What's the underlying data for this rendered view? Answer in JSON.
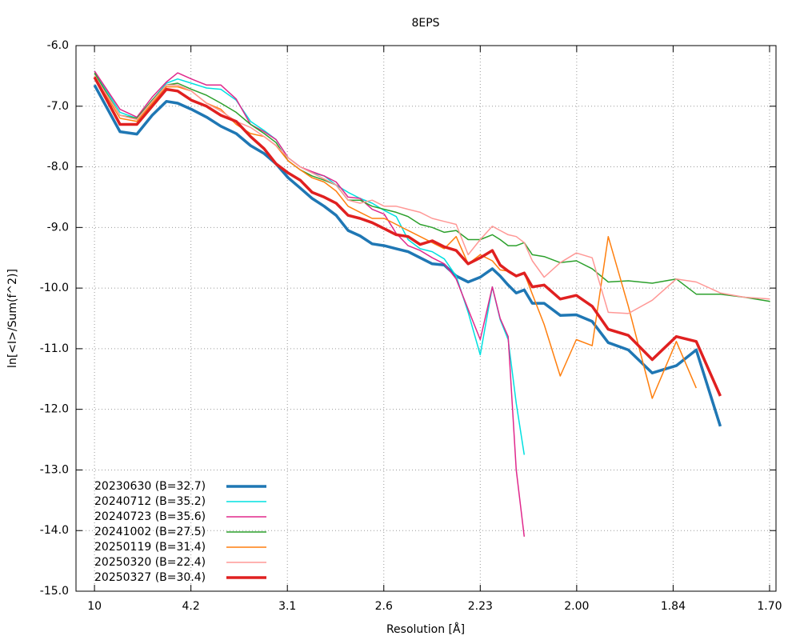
{
  "chart_data": {
    "type": "line",
    "title": "8EPS",
    "xlabel": "Resolution [Å]",
    "ylabel": "ln[<I>/Sum(f^2)]",
    "grid": true,
    "legend": "bottom-left",
    "xlim": [
      0.0008,
      0.3492
    ],
    "ylim": [
      -15,
      -6
    ],
    "xticks": [
      {
        "value": 0.01,
        "label": "10"
      },
      {
        "value": 0.058,
        "label": "4.2"
      },
      {
        "value": 0.106,
        "label": "3.1"
      },
      {
        "value": 0.154,
        "label": "2.6"
      },
      {
        "value": 0.202,
        "label": "2.23"
      },
      {
        "value": 0.25,
        "label": "2.00"
      },
      {
        "value": 0.298,
        "label": "1.84"
      },
      {
        "value": 0.346,
        "label": "1.70"
      }
    ],
    "yticks": [
      {
        "value": -6,
        "label": "-6.0"
      },
      {
        "value": -7,
        "label": "-7.0"
      },
      {
        "value": -8,
        "label": "-8.0"
      },
      {
        "value": -9,
        "label": "-9.0"
      },
      {
        "value": -10,
        "label": "-10.0"
      },
      {
        "value": -11,
        "label": "-11.0"
      },
      {
        "value": -12,
        "label": "-12.0"
      },
      {
        "value": -13,
        "label": "-13.0"
      },
      {
        "value": -14,
        "label": "-14.0"
      },
      {
        "value": -15,
        "label": "-15.0"
      }
    ],
    "x": [
      0.01,
      0.0227,
      0.0311,
      0.0387,
      0.0458,
      0.0514,
      0.0582,
      0.0658,
      0.0729,
      0.0805,
      0.0877,
      0.0944,
      0.1004,
      0.1064,
      0.1124,
      0.1183,
      0.1243,
      0.1303,
      0.1362,
      0.1422,
      0.1482,
      0.1542,
      0.1602,
      0.1661,
      0.1721,
      0.1781,
      0.1841,
      0.19,
      0.196,
      0.202,
      0.208,
      0.2119,
      0.2159,
      0.2199,
      0.2239,
      0.2279,
      0.2338,
      0.2418,
      0.2498,
      0.2577,
      0.2657,
      0.2757,
      0.2876,
      0.2996,
      0.3095,
      0.3215,
      0.3334,
      0.3462
    ],
    "series": [
      {
        "name": "20230630 (B=32.7)",
        "color": "#1f77b4",
        "linewidth": 3.5,
        "values": [
          -6.65,
          -7.42,
          -7.46,
          -7.15,
          -6.92,
          -6.95,
          -7.05,
          -7.18,
          -7.33,
          -7.45,
          -7.65,
          -7.78,
          -7.95,
          -8.18,
          -8.35,
          -8.52,
          -8.65,
          -8.8,
          -9.05,
          -9.14,
          -9.27,
          -9.3,
          -9.35,
          -9.4,
          -9.5,
          -9.6,
          -9.62,
          -9.8,
          -9.9,
          -9.82,
          -9.68,
          -9.8,
          -9.95,
          -10.08,
          -10.03,
          -10.25,
          -10.25,
          -10.45,
          -10.44,
          -10.55,
          -10.9,
          -11.02,
          -11.4,
          -11.28,
          -11.02,
          -12.28,
          null,
          null
        ]
      },
      {
        "name": "20240712 (B=35.2)",
        "color": "#00e0e0",
        "linewidth": 1.5,
        "values": [
          -6.42,
          -7.1,
          -7.2,
          -6.9,
          -6.62,
          -6.55,
          -6.62,
          -6.7,
          -6.72,
          -6.9,
          -7.25,
          -7.4,
          -7.55,
          -7.85,
          -8.0,
          -8.1,
          -8.15,
          -8.3,
          -8.42,
          -8.52,
          -8.6,
          -8.72,
          -8.82,
          -9.2,
          -9.35,
          -9.4,
          -9.52,
          -9.8,
          -10.4,
          -11.1,
          -9.98,
          -10.52,
          -10.85,
          -11.9,
          -12.75,
          null,
          null,
          null,
          null,
          null,
          null,
          null,
          null,
          null,
          null,
          null,
          null,
          null
        ]
      },
      {
        "name": "20240723 (B=35.6)",
        "color": "#e0288c",
        "linewidth": 1.5,
        "values": [
          -6.42,
          -7.05,
          -7.18,
          -6.85,
          -6.6,
          -6.45,
          -6.55,
          -6.65,
          -6.65,
          -6.88,
          -7.3,
          -7.42,
          -7.55,
          -7.85,
          -8.0,
          -8.08,
          -8.15,
          -8.25,
          -8.5,
          -8.52,
          -8.7,
          -8.78,
          -9.1,
          -9.3,
          -9.38,
          -9.5,
          -9.6,
          -9.85,
          -10.35,
          -10.85,
          -9.98,
          -10.5,
          -10.8,
          -13.0,
          -14.1,
          null,
          null,
          null,
          null,
          null,
          null,
          null,
          null,
          null,
          null,
          null,
          null,
          null
        ]
      },
      {
        "name": "20241002 (B=27.5)",
        "color": "#2ca02c",
        "linewidth": 1.5,
        "values": [
          -6.45,
          -7.15,
          -7.2,
          -6.9,
          -6.65,
          -6.62,
          -6.72,
          -6.82,
          -6.95,
          -7.1,
          -7.3,
          -7.45,
          -7.6,
          -7.9,
          -8.05,
          -8.15,
          -8.22,
          -8.3,
          -8.55,
          -8.55,
          -8.65,
          -8.7,
          -8.75,
          -8.82,
          -8.95,
          -9.0,
          -9.08,
          -9.05,
          -9.2,
          -9.2,
          -9.12,
          -9.2,
          -9.3,
          -9.3,
          -9.25,
          -9.45,
          -9.48,
          -9.58,
          -9.55,
          -9.68,
          -9.9,
          -9.88,
          -9.92,
          -9.85,
          -10.1,
          -10.1,
          -10.15,
          -10.22
        ]
      },
      {
        "name": "20250119 (B=31.4)",
        "color": "#ff7f0e",
        "linewidth": 1.5,
        "values": [
          -6.5,
          -7.2,
          -7.25,
          -6.95,
          -6.68,
          -6.68,
          -6.75,
          -6.95,
          -7.05,
          -7.3,
          -7.45,
          -7.5,
          -7.65,
          -7.9,
          -8.05,
          -8.18,
          -8.25,
          -8.4,
          -8.65,
          -8.75,
          -8.85,
          -8.85,
          -8.95,
          -9.05,
          -9.15,
          -9.25,
          -9.35,
          -9.15,
          -9.6,
          -9.45,
          -9.55,
          -9.7,
          -9.72,
          -9.8,
          -9.75,
          -10.1,
          -10.6,
          -11.45,
          -10.85,
          -10.95,
          -9.15,
          -10.3,
          -11.82,
          -10.88,
          -11.65,
          null,
          null,
          null
        ]
      },
      {
        "name": "20250320 (B=22.4)",
        "color": "#ff9896",
        "linewidth": 1.5,
        "values": [
          -6.5,
          -7.15,
          -7.22,
          -6.92,
          -6.65,
          -6.65,
          -6.75,
          -6.95,
          -7.08,
          -7.25,
          -7.35,
          -7.5,
          -7.65,
          -7.85,
          -8.0,
          -8.1,
          -8.2,
          -8.3,
          -8.55,
          -8.6,
          -8.55,
          -8.65,
          -8.65,
          -8.7,
          -8.75,
          -8.85,
          -8.9,
          -8.95,
          -9.45,
          -9.2,
          -8.98,
          -9.05,
          -9.12,
          -9.15,
          -9.25,
          -9.55,
          -9.82,
          -9.58,
          -9.42,
          -9.5,
          -10.4,
          -10.42,
          -10.2,
          -9.85,
          -9.9,
          -10.08,
          -10.15,
          -10.18
        ]
      },
      {
        "name": "20250327 (B=30.4)",
        "color": "#e02020",
        "linewidth": 3.5,
        "values": [
          -6.52,
          -7.3,
          -7.3,
          -7.0,
          -6.72,
          -6.75,
          -6.9,
          -7.0,
          -7.15,
          -7.25,
          -7.5,
          -7.7,
          -7.95,
          -8.1,
          -8.22,
          -8.42,
          -8.5,
          -8.6,
          -8.8,
          -8.85,
          -8.92,
          -9.02,
          -9.12,
          -9.15,
          -9.28,
          -9.22,
          -9.32,
          -9.38,
          -9.6,
          -9.5,
          -9.38,
          -9.62,
          -9.72,
          -9.8,
          -9.75,
          -9.98,
          -9.95,
          -10.18,
          -10.12,
          -10.3,
          -10.68,
          -10.78,
          -11.18,
          -10.8,
          -10.88,
          -11.78,
          null,
          null
        ]
      }
    ]
  }
}
